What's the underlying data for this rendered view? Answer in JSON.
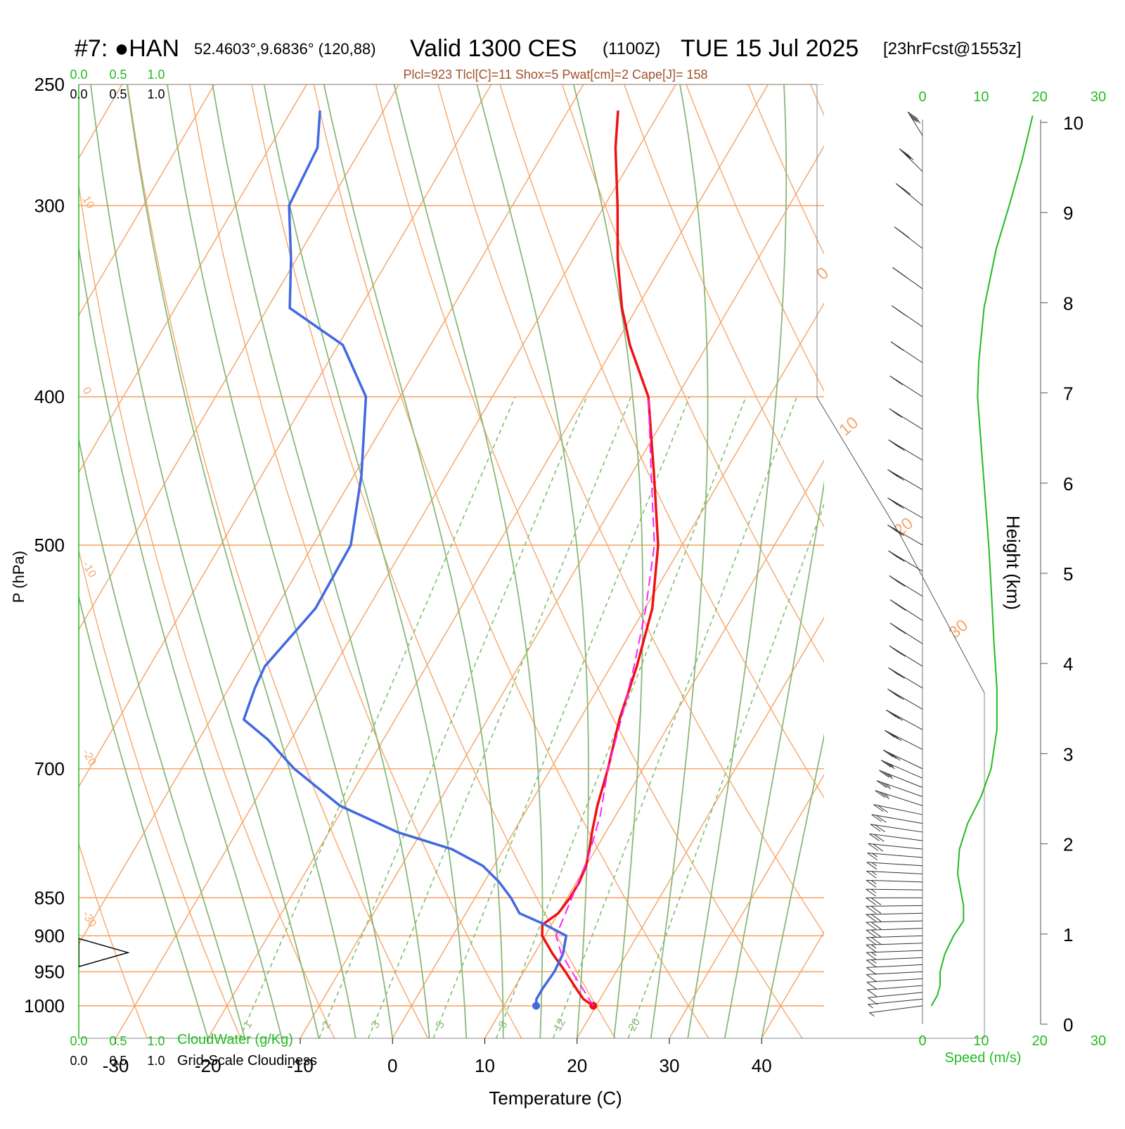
{
  "header": {
    "station": "#7: ●HAN",
    "coords": "52.4603°,9.6836° (120,88)",
    "valid": "Valid 1300 CES",
    "utc": "(1100Z)",
    "date": "TUE 15 Jul 2025",
    "fcst": "[23hrFcst@1553z]",
    "indices": "Plcl=923 Tlcl[C]=11 Shox=5 Pwat[cm]=2 Cape[J]= 158"
  },
  "colors": {
    "isotherm": "#f5a76c",
    "dry_adiabat": "#f5a76c",
    "moist_adiabat": "#8ab87a",
    "mixing_ratio": "#7cbf6a",
    "temperature": "#ee1111",
    "dewpoint": "#4169e1",
    "parcel": "#ff22ff",
    "speed": "#22bb22",
    "axis_green": "#22bb22",
    "label_brown": "#a0522d"
  },
  "chart_data": {
    "type": "line",
    "title": "",
    "xlabel": "Temperature (C)",
    "ylabel": "P (hPa)",
    "xlim": [
      -34,
      46
    ],
    "pressure_range": [
      250,
      1050
    ],
    "log_pressure": true,
    "temperature_ticks": [
      "-30",
      "-20",
      "-10",
      "0",
      "10",
      "20",
      "30",
      "40"
    ],
    "pressure_ticks": [
      "250",
      "300",
      "400",
      "500",
      "700",
      "850",
      "900",
      "950",
      "1000"
    ],
    "isotherm_pressure_levels": [
      250,
      300,
      400,
      500,
      700,
      850,
      900,
      950,
      1000
    ],
    "isotherm_diag_labels": [
      "10",
      "0",
      "-10",
      "-20",
      "-30"
    ],
    "isotherm_right_labels": [
      "0",
      "10",
      "20",
      "30"
    ],
    "mixing_ratio_lines": [
      1,
      2,
      3,
      5,
      8,
      12,
      20
    ],
    "mixing_ratio_labels": [
      "1",
      "2",
      "3",
      "5",
      "8",
      "12",
      "20"
    ],
    "series": [
      {
        "name": "Temperature",
        "p": [
          1000,
          990,
          975,
          950,
          925,
          900,
          885,
          870,
          850,
          830,
          810,
          790,
          770,
          740,
          700,
          650,
          600,
          550,
          500,
          450,
          400,
          370,
          350,
          325,
          300,
          275,
          260
        ],
        "t": [
          19.7,
          18.2,
          16.8,
          14.5,
          12.0,
          9.7,
          9.0,
          10.0,
          10.3,
          10.3,
          10.0,
          9.3,
          8.5,
          7.4,
          6.2,
          4.3,
          2.8,
          0.8,
          -2.6,
          -7.5,
          -13.1,
          -18.4,
          -21.6,
          -25.2,
          -28.6,
          -32.5,
          -34.6
        ]
      },
      {
        "name": "Dewpoint",
        "p": [
          1000,
          990,
          975,
          950,
          925,
          900,
          885,
          870,
          850,
          830,
          810,
          790,
          770,
          740,
          700,
          670,
          650,
          620,
          600,
          550,
          500,
          450,
          400,
          370,
          350,
          325,
          300,
          275,
          260
        ],
        "t": [
          13.5,
          13.1,
          13.1,
          13.3,
          13.1,
          12.3,
          9.3,
          5.8,
          3.9,
          1.6,
          -1.2,
          -5.6,
          -12.6,
          -20.5,
          -27.8,
          -32.5,
          -36.4,
          -37.2,
          -37.5,
          -35.7,
          -35.9,
          -39.2,
          -43.7,
          -49.5,
          -57.6,
          -60.6,
          -64.2,
          -64.8,
          -66.9
        ]
      },
      {
        "name": "Parcel",
        "p": [
          1000,
          975,
          950,
          923,
          900,
          850,
          800,
          750,
          700,
          650,
          600,
          550,
          500,
          450,
          400
        ],
        "t": [
          19.7,
          17.5,
          15.2,
          12.8,
          11.2,
          10.5,
          9.7,
          8.3,
          6.2,
          4.5,
          2.5,
          0.1,
          -3.0,
          -7.8,
          -13.1
        ]
      }
    ],
    "cloud_axis": {
      "labels": [
        "0.0",
        "0.5",
        "1.0"
      ],
      "cloudwater_label": "CloudWater (g/Kg)",
      "cloudiness_label": "Grid-Scale Cloudiness"
    },
    "wind_panel": {
      "speed_ticks": [
        "0",
        "10",
        "20",
        "30"
      ],
      "speed_xlim": [
        0,
        30
      ],
      "speed_label": "Speed (m/s)",
      "height_ticks": [
        "0",
        "1",
        "2",
        "3",
        "4",
        "5",
        "6",
        "7",
        "8",
        "9",
        "10"
      ],
      "height_label": "Height (km)",
      "speed_profile": {
        "p": [
          1000,
          985,
          970,
          950,
          925,
          900,
          880,
          860,
          840,
          820,
          790,
          760,
          730,
          700,
          660,
          620,
          580,
          540,
          500,
          460,
          420,
          400,
          380,
          350,
          320,
          300,
          280,
          262
        ],
        "v": [
          1.5,
          2.5,
          3.0,
          3.0,
          3.8,
          5.3,
          7.0,
          7.0,
          6.5,
          6.0,
          6.3,
          7.7,
          10.0,
          11.7,
          12.7,
          12.7,
          12.2,
          11.8,
          11.3,
          10.6,
          9.8,
          9.4,
          9.6,
          10.5,
          12.6,
          14.8,
          17.0,
          18.8
        ]
      },
      "barbs": {
        "p": [
          1000,
          990,
          980,
          970,
          960,
          950,
          940,
          930,
          920,
          910,
          900,
          890,
          880,
          870,
          860,
          850,
          840,
          830,
          820,
          810,
          800,
          790,
          780,
          770,
          760,
          750,
          740,
          730,
          720,
          710,
          700,
          680,
          660,
          640,
          620,
          600,
          580,
          560,
          540,
          520,
          500,
          480,
          460,
          440,
          420,
          400,
          380,
          360,
          340,
          320,
          300,
          285,
          270
        ],
        "dir": [
          250,
          255,
          255,
          258,
          260,
          262,
          262,
          263,
          264,
          265,
          265,
          265,
          266,
          267,
          268,
          270,
          272,
          275,
          278,
          280,
          283,
          286,
          290,
          293,
          296,
          300,
          303,
          306,
          310,
          313,
          316,
          318,
          320,
          322,
          323,
          324,
          325,
          325,
          324,
          323,
          322,
          322,
          322,
          323,
          324,
          325,
          326,
          327,
          328,
          330,
          332,
          336,
          345
        ],
        "spd": [
          3,
          4,
          5,
          5,
          6,
          6,
          7,
          8,
          9,
          9,
          10,
          10,
          10,
          10,
          10,
          10,
          9,
          9,
          9,
          9,
          9,
          10,
          10,
          11,
          12,
          12,
          13,
          13,
          14,
          14,
          15,
          16,
          16,
          16,
          16,
          16,
          16,
          16,
          16,
          16,
          15,
          15,
          15,
          15,
          14,
          14,
          14,
          15,
          15,
          16,
          17,
          18,
          19
        ]
      }
    }
  }
}
